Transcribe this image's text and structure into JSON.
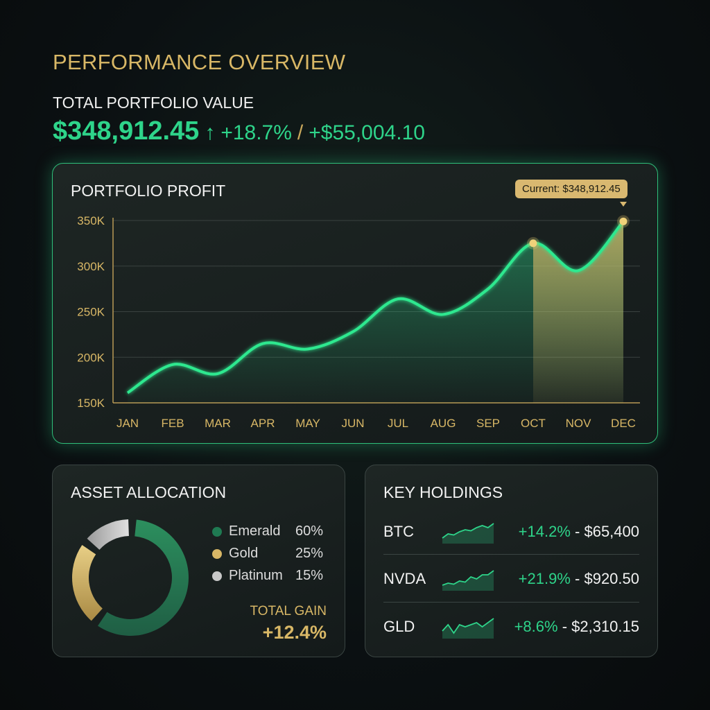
{
  "header": {
    "title": "PERFORMANCE OVERVIEW",
    "subtitle": "TOTAL PORTFOLIO VALUE",
    "value": "$348,912.45",
    "arrow": "↑",
    "change_pct": "+18.7%",
    "slash": "/",
    "change_abs": "+$55,004.10"
  },
  "colors": {
    "emerald": "#2ed48a",
    "gold": "#d8b766",
    "platinum": "#c8c8c8"
  },
  "chart_data": {
    "type": "line",
    "title": "PORTFOLIO PROFIT",
    "categories": [
      "JAN",
      "FEB",
      "MAR",
      "APR",
      "MAY",
      "JUN",
      "JUL",
      "AUG",
      "SEP",
      "OCT",
      "NOV",
      "DEC"
    ],
    "values": [
      161,
      192,
      182,
      215,
      209,
      228,
      264,
      247,
      275,
      325,
      295,
      349
    ],
    "unit": "K",
    "ylim": [
      150,
      350
    ],
    "yticks": [
      "150K",
      "200K",
      "250K",
      "300K",
      "350K"
    ],
    "ytick_values": [
      150,
      200,
      250,
      300,
      350
    ],
    "highlight_range": [
      "OCT",
      "DEC"
    ],
    "tooltip": "Current: $348,912.45"
  },
  "allocation": {
    "title": "ASSET ALLOCATION",
    "items": [
      {
        "name": "Emerald",
        "pct": "60%",
        "value": 60
      },
      {
        "name": "Gold",
        "pct": "25%",
        "value": 25
      },
      {
        "name": "Platinum",
        "pct": "15%",
        "value": 15
      }
    ],
    "total_label": "TOTAL GAIN",
    "total_value": "+12.4%"
  },
  "holdings": {
    "title": "KEY HOLDINGS",
    "items": [
      {
        "symbol": "BTC",
        "change": "+14.2%",
        "price": "- $65,400",
        "spark": [
          2,
          4,
          3.5,
          5,
          6,
          5.5,
          7,
          8,
          7,
          9
        ]
      },
      {
        "symbol": "NVDA",
        "change": "+21.9%",
        "price": "- $920.50",
        "spark": [
          2,
          3,
          2.5,
          4,
          3.5,
          6,
          5,
          7,
          7,
          9
        ]
      },
      {
        "symbol": "GLD",
        "change": "+8.6%",
        "price": "- $2,310.15",
        "spark": [
          3,
          6,
          2,
          6,
          5,
          6,
          7,
          5,
          7,
          9
        ]
      }
    ]
  }
}
